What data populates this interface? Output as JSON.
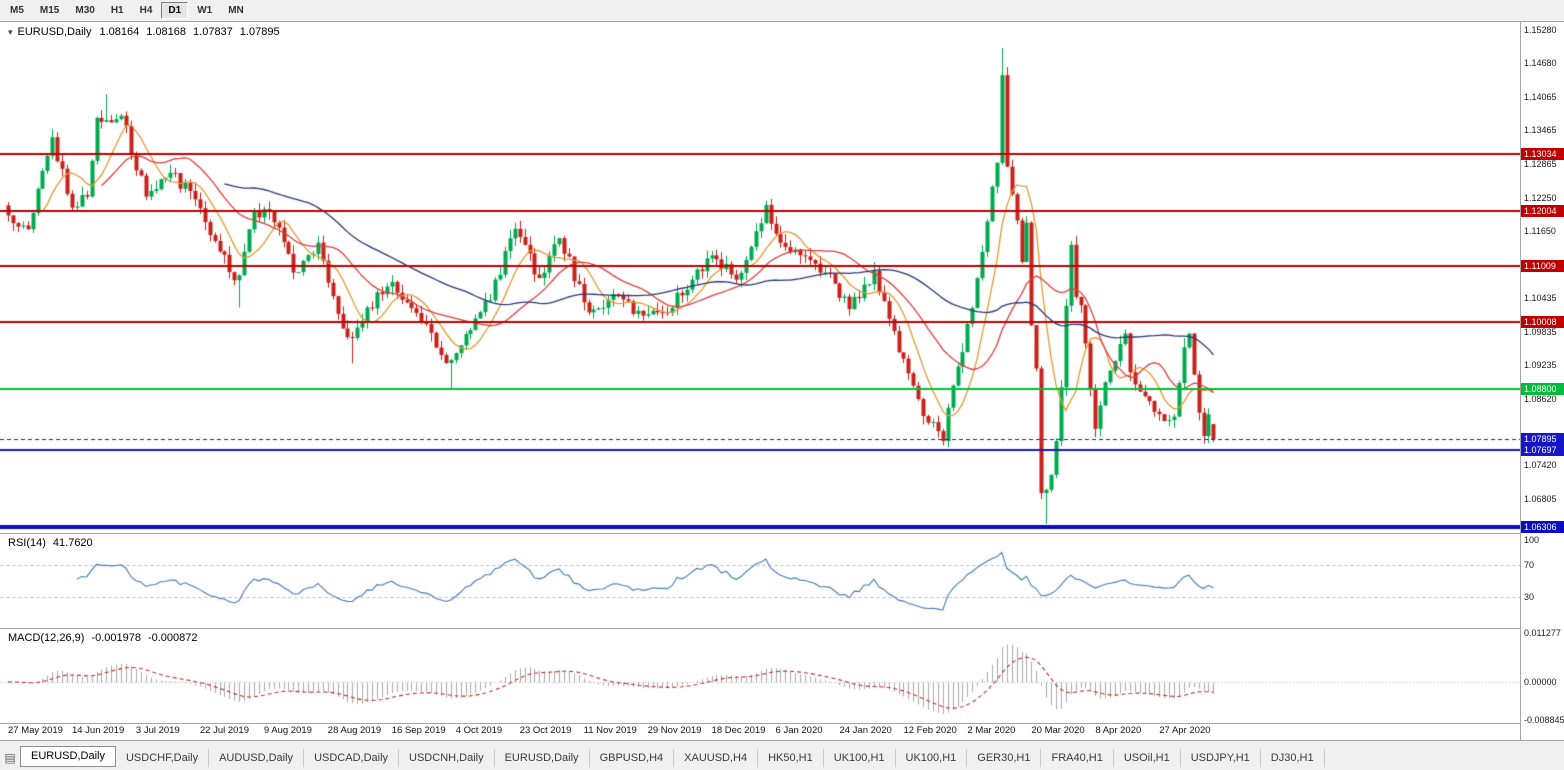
{
  "toolbar": {
    "timeframes": [
      {
        "label": "M5"
      },
      {
        "label": "M15"
      },
      {
        "label": "M30"
      },
      {
        "label": "H1"
      },
      {
        "label": "H4"
      },
      {
        "label": "D1",
        "active": true
      },
      {
        "label": "W1"
      },
      {
        "label": "MN"
      }
    ]
  },
  "main_chart": {
    "symbol": "EURUSD,Daily",
    "open": "1.08164",
    "high": "1.08168",
    "low": "1.07837",
    "close": "1.07895"
  },
  "rsi_panel": {
    "label": "RSI(14)",
    "value": "41.7620"
  },
  "macd_panel": {
    "label": "MACD(12,26,9)",
    "value_macd": "-0.001978",
    "value_signal": "-0.000872"
  },
  "tabs": {
    "items": [
      {
        "label": "EURUSD,Daily",
        "active": true
      },
      {
        "label": "USDCHF,Daily"
      },
      {
        "label": "AUDUSD,Daily"
      },
      {
        "label": "USDCAD,Daily"
      },
      {
        "label": "USDCNH,Daily"
      },
      {
        "label": "EURUSD,Daily"
      },
      {
        "label": "GBPUSD,H4"
      },
      {
        "label": "XAUUSD,H4"
      },
      {
        "label": "HK50,H1"
      },
      {
        "label": "UK100,H1"
      },
      {
        "label": "UK100,H1"
      },
      {
        "label": "GER30,H1"
      },
      {
        "label": "FRA40,H1"
      },
      {
        "label": "USOil,H1"
      },
      {
        "label": "USDJPY,H1"
      },
      {
        "label": "DJ30,H1"
      }
    ]
  },
  "chart_data": {
    "type": "candlestick",
    "symbol": "EURUSD",
    "timeframe": "Daily",
    "current_ohlc": {
      "open": 1.08164,
      "high": 1.08168,
      "low": 1.07837,
      "close": 1.07895
    },
    "price_range": [
      1.062,
      1.1542
    ],
    "price_axis_ticks": [
      "1.15280",
      "1.14680",
      "1.14065",
      "1.13465",
      "1.12865",
      "1.12250",
      "1.11650",
      "1.11050",
      "1.10435",
      "1.09835",
      "1.09235",
      "1.08620",
      "1.08020",
      "1.07420",
      "1.06805",
      "1.06205"
    ],
    "x_labels": [
      {
        "i": 0,
        "label": "27 May 2019"
      },
      {
        "i": 13,
        "label": "14 Jun 2019"
      },
      {
        "i": 26,
        "label": "3 Jul 2019"
      },
      {
        "i": 39,
        "label": "22 Jul 2019"
      },
      {
        "i": 52,
        "label": "9 Aug 2019"
      },
      {
        "i": 65,
        "label": "28 Aug 2019"
      },
      {
        "i": 78,
        "label": "16 Sep 2019"
      },
      {
        "i": 91,
        "label": "4 Oct 2019"
      },
      {
        "i": 104,
        "label": "23 Oct 2019"
      },
      {
        "i": 117,
        "label": "11 Nov 2019"
      },
      {
        "i": 130,
        "label": "29 Nov 2019"
      },
      {
        "i": 143,
        "label": "18 Dec 2019"
      },
      {
        "i": 156,
        "label": "6 Jan 2020"
      },
      {
        "i": 169,
        "label": "24 Jan 2020"
      },
      {
        "i": 182,
        "label": "12 Feb 2020"
      },
      {
        "i": 195,
        "label": "2 Mar 2020"
      },
      {
        "i": 208,
        "label": "20 Mar 2020"
      },
      {
        "i": 221,
        "label": "8 Apr 2020"
      },
      {
        "i": 234,
        "label": "27 Apr 2020"
      }
    ],
    "close_anchors": [
      [
        0,
        1.1193
      ],
      [
        4,
        1.1168
      ],
      [
        9,
        1.1334
      ],
      [
        13,
        1.1207
      ],
      [
        16,
        1.1227
      ],
      [
        18,
        1.1369
      ],
      [
        20,
        1.1365
      ],
      [
        23,
        1.1373
      ],
      [
        28,
        1.1227
      ],
      [
        33,
        1.127
      ],
      [
        38,
        1.1222
      ],
      [
        43,
        1.1128
      ],
      [
        46,
        1.1076
      ],
      [
        47,
        1.1085
      ],
      [
        50,
        1.12
      ],
      [
        53,
        1.1199
      ],
      [
        55,
        1.1171
      ],
      [
        58,
        1.109
      ],
      [
        63,
        1.1144
      ],
      [
        68,
        1.0989
      ],
      [
        70,
        1.0972
      ],
      [
        73,
        1.1027
      ],
      [
        78,
        1.1073
      ],
      [
        83,
        1.1017
      ],
      [
        88,
        1.0941
      ],
      [
        90,
        1.0932
      ],
      [
        93,
        1.0979
      ],
      [
        98,
        1.104
      ],
      [
        103,
        1.1169
      ],
      [
        108,
        1.108
      ],
      [
        112,
        1.1152
      ],
      [
        118,
        1.1018
      ],
      [
        123,
        1.1051
      ],
      [
        128,
        1.1021
      ],
      [
        133,
        1.1018
      ],
      [
        138,
        1.1059
      ],
      [
        143,
        1.1121
      ],
      [
        148,
        1.1077
      ],
      [
        154,
        1.1212
      ],
      [
        156,
        1.116
      ],
      [
        161,
        1.1121
      ],
      [
        166,
        1.109
      ],
      [
        171,
        1.1024
      ],
      [
        176,
        1.1093
      ],
      [
        181,
        1.0946
      ],
      [
        186,
        1.0831
      ],
      [
        190,
        1.0786
      ],
      [
        191,
        1.0846
      ],
      [
        196,
        1.1026
      ],
      [
        201,
        1.1288
      ],
      [
        202,
        1.1446
      ],
      [
        203,
        1.1281
      ],
      [
        205,
        1.1184
      ],
      [
        206,
        1.1109
      ],
      [
        207,
        1.118
      ],
      [
        208,
        1.0995
      ],
      [
        209,
        1.0917
      ],
      [
        210,
        1.0692
      ],
      [
        211,
        1.0698
      ],
      [
        212,
        1.0725
      ],
      [
        213,
        1.0786
      ],
      [
        214,
        1.0883
      ],
      [
        215,
        1.103
      ],
      [
        216,
        1.114
      ],
      [
        217,
        1.1046
      ],
      [
        218,
        1.1031
      ],
      [
        219,
        1.0962
      ],
      [
        221,
        1.0808
      ],
      [
        223,
        1.0892
      ],
      [
        225,
        1.093
      ],
      [
        227,
        1.098
      ],
      [
        228,
        1.091
      ],
      [
        230,
        1.0875
      ],
      [
        232,
        1.0858
      ],
      [
        235,
        1.0822
      ],
      [
        237,
        1.083
      ],
      [
        239,
        1.0955
      ],
      [
        240,
        1.098
      ],
      [
        241,
        1.0906
      ],
      [
        242,
        1.0837
      ],
      [
        243,
        1.0795
      ],
      [
        244,
        1.0834
      ],
      [
        245,
        1.07895
      ]
    ],
    "wick_overrides": {
      "20": {
        "h": 1.1412
      },
      "47": {
        "l": 1.1027
      },
      "70": {
        "l": 1.0926
      },
      "90": {
        "l": 1.0879
      },
      "190": {
        "l": 1.0778
      },
      "202": {
        "h": 1.1495
      },
      "211": {
        "l": 1.0636
      },
      "216": {
        "h": 1.1147
      },
      "239": {
        "h": 1.0972
      },
      "245": {
        "o": 1.08164,
        "h": 1.08168,
        "l": 1.07837
      }
    },
    "noise": 0.0012,
    "wick": 0.0016,
    "seed": 20200509,
    "colors": {
      "up": "#00A94F",
      "down": "#C8201A"
    },
    "moving_averages": [
      {
        "period": 8,
        "color": "#E09A30"
      },
      {
        "period": 20,
        "color": "#E03C3C"
      },
      {
        "period": 45,
        "color": "#263677"
      }
    ],
    "levels": [
      {
        "value": 1.13034,
        "label": "1.13034",
        "color": "#C00000",
        "width": 2
      },
      {
        "value": 1.12004,
        "label": "1.12004",
        "color": "#C00000",
        "width": 2
      },
      {
        "value": 1.11009,
        "label": "1.11009",
        "color": "#C00000",
        "width": 2
      },
      {
        "value": 1.10008,
        "label": "1.10008",
        "color": "#C00000",
        "width": 2
      },
      {
        "value": 1.088,
        "label": "1.08800",
        "color": "#00BE3C",
        "width": 2
      },
      {
        "value": 1.07697,
        "label": "1.07697",
        "color": "#1616C8",
        "width": 2
      },
      {
        "value": 1.06306,
        "label": "1.06306",
        "color": "#0A0AC8",
        "width": 4
      }
    ],
    "current_price": {
      "value": 1.07895,
      "label": "1.07895",
      "color": "#1616C8"
    },
    "indicators": {
      "rsi": {
        "period": 14,
        "current": 41.762,
        "color": "#3E7CB8",
        "levels": [
          70,
          30
        ],
        "scale": [
          108,
          -8
        ],
        "ticks": [
          {
            "label": "100",
            "v": 100
          },
          {
            "label": "70",
            "v": 70
          },
          {
            "label": "30",
            "v": 30
          }
        ]
      },
      "macd": {
        "fast": 12,
        "slow": 26,
        "signal": 9,
        "current_macd": -0.001978,
        "current_signal": -0.000872,
        "range": [
          -0.0095,
          0.0122
        ],
        "hist_color": "#A8A8A8",
        "signal_color": "#C03028",
        "ticks": [
          {
            "label": "0.011277",
            "v": 0.011277
          },
          {
            "label": "0.00000",
            "v": 0
          },
          {
            "label": "-0.008845",
            "v": -0.008845
          }
        ]
      }
    }
  }
}
